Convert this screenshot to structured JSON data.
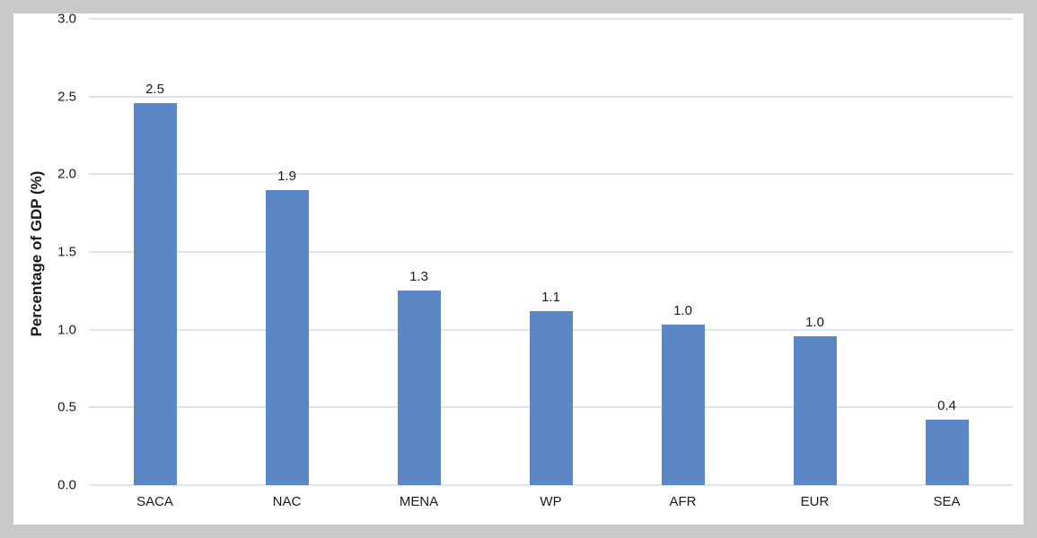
{
  "chart_data": {
    "type": "bar",
    "title": "",
    "xlabel": "",
    "ylabel": "Percentage of GDP (%)",
    "categories": [
      "SACA",
      "NAC",
      "MENA",
      "WP",
      "AFR",
      "EUR",
      "SEA"
    ],
    "values": [
      2.46,
      1.9,
      1.25,
      1.12,
      1.03,
      0.96,
      0.42
    ],
    "value_labels": [
      "2.5",
      "1.9",
      "1.3",
      "1.1",
      "1.0",
      "1.0",
      "0.4"
    ],
    "ylim": [
      0,
      3.0
    ],
    "yticks": [
      0.0,
      0.5,
      1.0,
      1.5,
      2.0,
      2.5,
      3.0
    ],
    "grid": true,
    "legend": false,
    "colors": {
      "bar": "#5b87c5",
      "gridline": "#dce6f2",
      "plot_background": "#ffffff",
      "frame_background": "#c9c9c9",
      "text": "#1a1a1a"
    }
  }
}
